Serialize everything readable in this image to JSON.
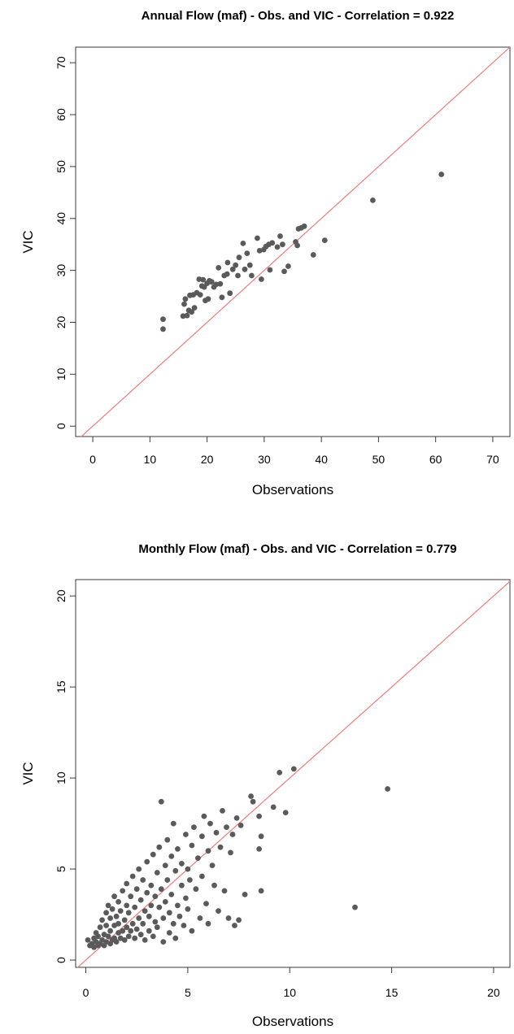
{
  "chart_data": [
    {
      "type": "scatter",
      "title": "Annual Flow (maf) - Obs. and VIC - Correlation = 0.922",
      "xlabel": "Observations",
      "ylabel": "VIC",
      "xlim": [
        -3,
        73
      ],
      "ylim": [
        -2,
        73
      ],
      "xticks": [
        0,
        10,
        20,
        30,
        40,
        50,
        60,
        70
      ],
      "yticks": [
        0,
        10,
        20,
        30,
        40,
        50,
        60,
        70
      ],
      "reference_line": "y = x",
      "reference_line_color": "#f07c7c",
      "point_color": "#5a5a5a",
      "grid": false,
      "points": [
        [
          12.3,
          20.6
        ],
        [
          12.3,
          18.7
        ],
        [
          15.8,
          21.2
        ],
        [
          16.0,
          23.5
        ],
        [
          16.2,
          24.5
        ],
        [
          16.5,
          21.3
        ],
        [
          16.8,
          22.3
        ],
        [
          17.0,
          25.2
        ],
        [
          17.3,
          22.0
        ],
        [
          17.6,
          25.3
        ],
        [
          17.8,
          22.8
        ],
        [
          18.2,
          25.7
        ],
        [
          18.6,
          28.3
        ],
        [
          18.8,
          25.3
        ],
        [
          19.1,
          27.0
        ],
        [
          19.3,
          28.2
        ],
        [
          19.5,
          26.8
        ],
        [
          19.7,
          24.2
        ],
        [
          20.0,
          27.5
        ],
        [
          20.2,
          24.5
        ],
        [
          20.4,
          28.0
        ],
        [
          20.8,
          27.8
        ],
        [
          21.2,
          26.8
        ],
        [
          21.6,
          27.3
        ],
        [
          22.0,
          30.5
        ],
        [
          22.3,
          27.4
        ],
        [
          22.6,
          24.8
        ],
        [
          23.0,
          29.0
        ],
        [
          23.5,
          29.3
        ],
        [
          23.6,
          31.5
        ],
        [
          24.0,
          25.6
        ],
        [
          24.5,
          30.2
        ],
        [
          25.0,
          31.0
        ],
        [
          25.4,
          29.0
        ],
        [
          25.6,
          32.5
        ],
        [
          26.3,
          35.2
        ],
        [
          26.6,
          30.2
        ],
        [
          27.0,
          33.3
        ],
        [
          27.5,
          31.0
        ],
        [
          27.8,
          29.0
        ],
        [
          28.8,
          36.2
        ],
        [
          29.2,
          33.8
        ],
        [
          29.5,
          28.3
        ],
        [
          29.9,
          34.0
        ],
        [
          30.3,
          34.6
        ],
        [
          30.8,
          35.0
        ],
        [
          31.0,
          30.1
        ],
        [
          31.4,
          35.3
        ],
        [
          32.3,
          34.5
        ],
        [
          32.8,
          36.6
        ],
        [
          33.2,
          35.0
        ],
        [
          33.5,
          29.8
        ],
        [
          34.2,
          30.8
        ],
        [
          35.5,
          35.5
        ],
        [
          35.8,
          34.8
        ],
        [
          36.0,
          38.0
        ],
        [
          36.5,
          38.2
        ],
        [
          37.0,
          38.5
        ],
        [
          38.6,
          33.0
        ],
        [
          40.6,
          35.8
        ],
        [
          49.0,
          43.5
        ],
        [
          61.0,
          48.5
        ]
      ]
    },
    {
      "type": "scatter",
      "title": "Monthly Flow (maf) - Obs. and VIC - Correlation = 0.779",
      "xlabel": "Observations",
      "ylabel": "VIC",
      "xlim": [
        -0.5,
        20.8
      ],
      "ylim": [
        -0.4,
        20.9
      ],
      "xticks": [
        0,
        5,
        10,
        15,
        20
      ],
      "yticks": [
        0,
        5,
        10,
        15,
        20
      ],
      "reference_line": "y = x",
      "reference_line_color": "#f07c7c",
      "point_color": "#5a5a5a",
      "grid": false,
      "points": [
        [
          0.1,
          1.1
        ],
        [
          0.2,
          0.8
        ],
        [
          0.3,
          0.9
        ],
        [
          0.4,
          1.2
        ],
        [
          0.4,
          0.7
        ],
        [
          0.5,
          1.0
        ],
        [
          0.5,
          1.5
        ],
        [
          0.6,
          0.8
        ],
        [
          0.6,
          1.3
        ],
        [
          0.7,
          1.8
        ],
        [
          0.7,
          0.9
        ],
        [
          0.8,
          1.1
        ],
        [
          0.8,
          2.2
        ],
        [
          0.9,
          1.4
        ],
        [
          0.9,
          0.8
        ],
        [
          1.0,
          1.9
        ],
        [
          1.0,
          2.6
        ],
        [
          1.0,
          1.0
        ],
        [
          1.1,
          1.3
        ],
        [
          1.1,
          3.0
        ],
        [
          1.2,
          1.6
        ],
        [
          1.2,
          2.3
        ],
        [
          1.2,
          0.9
        ],
        [
          1.3,
          1.1
        ],
        [
          1.3,
          2.8
        ],
        [
          1.4,
          1.9
        ],
        [
          1.4,
          3.5
        ],
        [
          1.4,
          1.2
        ],
        [
          1.5,
          2.4
        ],
        [
          1.5,
          1.0
        ],
        [
          1.6,
          1.5
        ],
        [
          1.6,
          3.2
        ],
        [
          1.6,
          2.0
        ],
        [
          1.7,
          1.2
        ],
        [
          1.7,
          2.7
        ],
        [
          1.8,
          3.8
        ],
        [
          1.8,
          1.6
        ],
        [
          1.9,
          2.2
        ],
        [
          1.9,
          1.1
        ],
        [
          2.0,
          3.0
        ],
        [
          2.0,
          1.8
        ],
        [
          2.0,
          4.2
        ],
        [
          2.1,
          1.3
        ],
        [
          2.1,
          2.6
        ],
        [
          2.2,
          3.5
        ],
        [
          2.2,
          1.6
        ],
        [
          2.3,
          2.0
        ],
        [
          2.3,
          4.6
        ],
        [
          2.4,
          1.2
        ],
        [
          2.4,
          2.9
        ],
        [
          2.5,
          3.9
        ],
        [
          2.5,
          1.7
        ],
        [
          2.6,
          2.3
        ],
        [
          2.6,
          5.0
        ],
        [
          2.7,
          1.4
        ],
        [
          2.7,
          3.3
        ],
        [
          2.8,
          2.0
        ],
        [
          2.8,
          4.4
        ],
        [
          2.9,
          1.1
        ],
        [
          2.9,
          2.7
        ],
        [
          3.0,
          3.7
        ],
        [
          3.0,
          5.4
        ],
        [
          3.1,
          1.6
        ],
        [
          3.1,
          2.4
        ],
        [
          3.2,
          4.1
        ],
        [
          3.2,
          3.0
        ],
        [
          3.3,
          1.3
        ],
        [
          3.3,
          5.8
        ],
        [
          3.4,
          2.1
        ],
        [
          3.4,
          3.5
        ],
        [
          3.5,
          4.8
        ],
        [
          3.5,
          1.8
        ],
        [
          3.6,
          2.9
        ],
        [
          3.6,
          6.2
        ],
        [
          3.7,
          8.7
        ],
        [
          3.7,
          3.9
        ],
        [
          3.8,
          1.0
        ],
        [
          3.8,
          2.3
        ],
        [
          3.9,
          5.2
        ],
        [
          3.9,
          3.2
        ],
        [
          4.0,
          4.4
        ],
        [
          4.0,
          6.6
        ],
        [
          4.1,
          1.5
        ],
        [
          4.1,
          2.6
        ],
        [
          4.2,
          3.6
        ],
        [
          4.2,
          5.7
        ],
        [
          4.3,
          2.0
        ],
        [
          4.3,
          7.5
        ],
        [
          4.4,
          4.9
        ],
        [
          4.4,
          1.2
        ],
        [
          4.5,
          3.0
        ],
        [
          4.5,
          6.1
        ],
        [
          4.6,
          2.4
        ],
        [
          4.7,
          4.1
        ],
        [
          4.7,
          5.3
        ],
        [
          4.8,
          1.9
        ],
        [
          4.9,
          6.9
        ],
        [
          4.9,
          3.4
        ],
        [
          5.0,
          2.8
        ],
        [
          5.0,
          5.0
        ],
        [
          5.1,
          4.4
        ],
        [
          5.2,
          6.3
        ],
        [
          5.2,
          1.6
        ],
        [
          5.3,
          7.3
        ],
        [
          5.4,
          3.9
        ],
        [
          5.5,
          5.6
        ],
        [
          5.6,
          2.3
        ],
        [
          5.7,
          6.8
        ],
        [
          5.7,
          4.6
        ],
        [
          5.8,
          7.9
        ],
        [
          5.9,
          3.1
        ],
        [
          6.0,
          6.0
        ],
        [
          6.0,
          2.0
        ],
        [
          6.1,
          7.5
        ],
        [
          6.2,
          5.2
        ],
        [
          6.3,
          4.1
        ],
        [
          6.4,
          7.0
        ],
        [
          6.5,
          2.7
        ],
        [
          6.6,
          6.2
        ],
        [
          6.7,
          8.2
        ],
        [
          6.8,
          3.8
        ],
        [
          6.9,
          7.3
        ],
        [
          7.0,
          2.3
        ],
        [
          7.1,
          5.9
        ],
        [
          7.2,
          6.9
        ],
        [
          7.3,
          1.9
        ],
        [
          7.4,
          7.8
        ],
        [
          7.5,
          2.2
        ],
        [
          7.6,
          7.4
        ],
        [
          7.8,
          3.6
        ],
        [
          8.1,
          9.0
        ],
        [
          8.2,
          8.7
        ],
        [
          8.5,
          7.9
        ],
        [
          8.5,
          6.1
        ],
        [
          8.6,
          6.8
        ],
        [
          8.6,
          3.8
        ],
        [
          9.2,
          8.4
        ],
        [
          9.5,
          10.3
        ],
        [
          9.8,
          8.1
        ],
        [
          10.2,
          10.5
        ],
        [
          13.2,
          2.9
        ],
        [
          14.8,
          9.4
        ]
      ]
    }
  ]
}
